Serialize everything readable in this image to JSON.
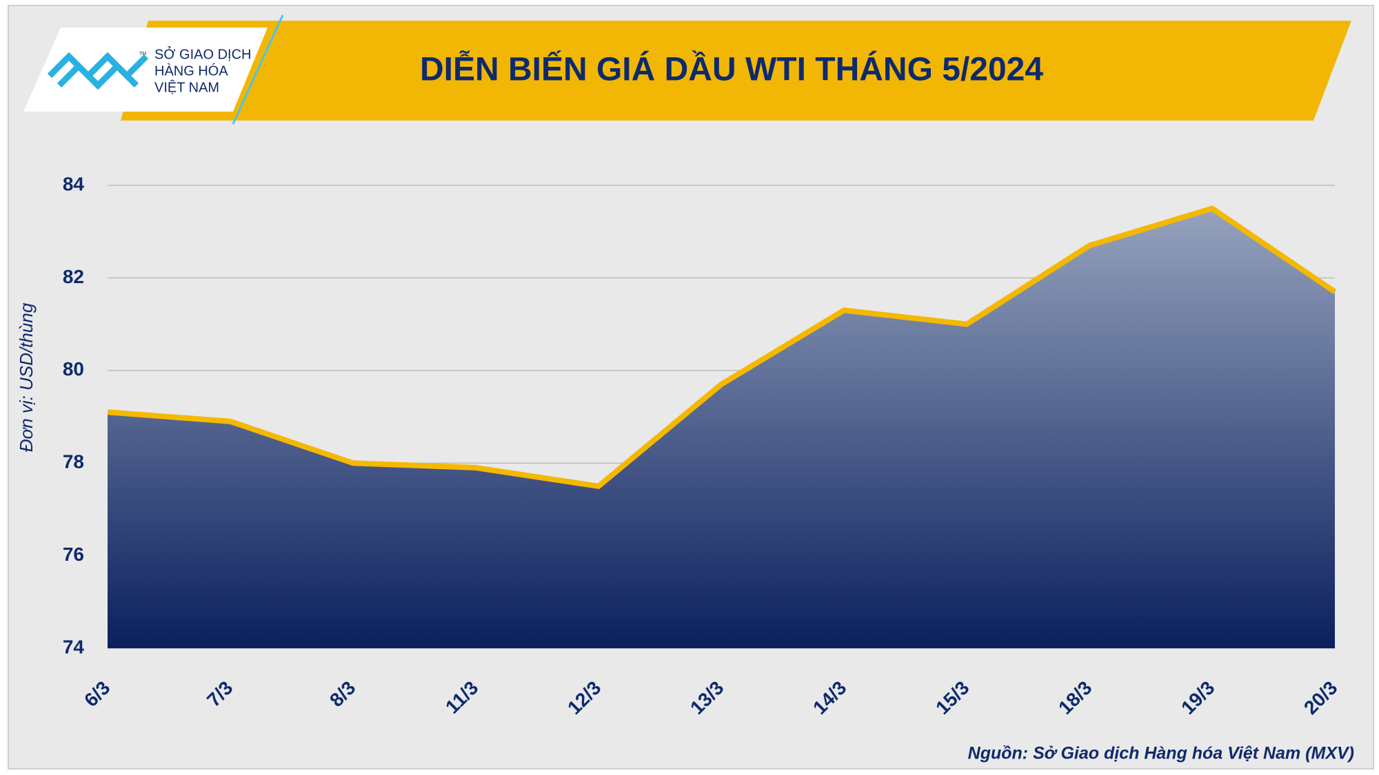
{
  "logo": {
    "lines": [
      "SỞ GIAO DỊCH",
      "HÀNG HÓA",
      "VIỆT NAM"
    ],
    "mark": "TM"
  },
  "chart_data": {
    "type": "area",
    "title": "DIỄN BIẾN GIÁ DẦU WTI THÁNG 5/2024",
    "y_label": "Đơn vị: USD/thùng",
    "source": "Nguồn: Sở Giao dịch Hàng hóa Việt Nam (MXV)",
    "categories": [
      "6/3",
      "7/3",
      "8/3",
      "11/3",
      "12/3",
      "13/3",
      "14/3",
      "15/3",
      "18/3",
      "19/3",
      "20/3"
    ],
    "values": [
      79.1,
      78.9,
      78.0,
      77.9,
      77.5,
      79.7,
      81.3,
      81.0,
      82.7,
      83.5,
      81.7
    ],
    "line_color": "#f5b800",
    "fill_top": "#96a3bd",
    "fill_bottom": "#0a1f5e",
    "ylim": [
      74,
      84
    ],
    "yticks": [
      74,
      76,
      78,
      80,
      82,
      84
    ],
    "grid": true
  }
}
